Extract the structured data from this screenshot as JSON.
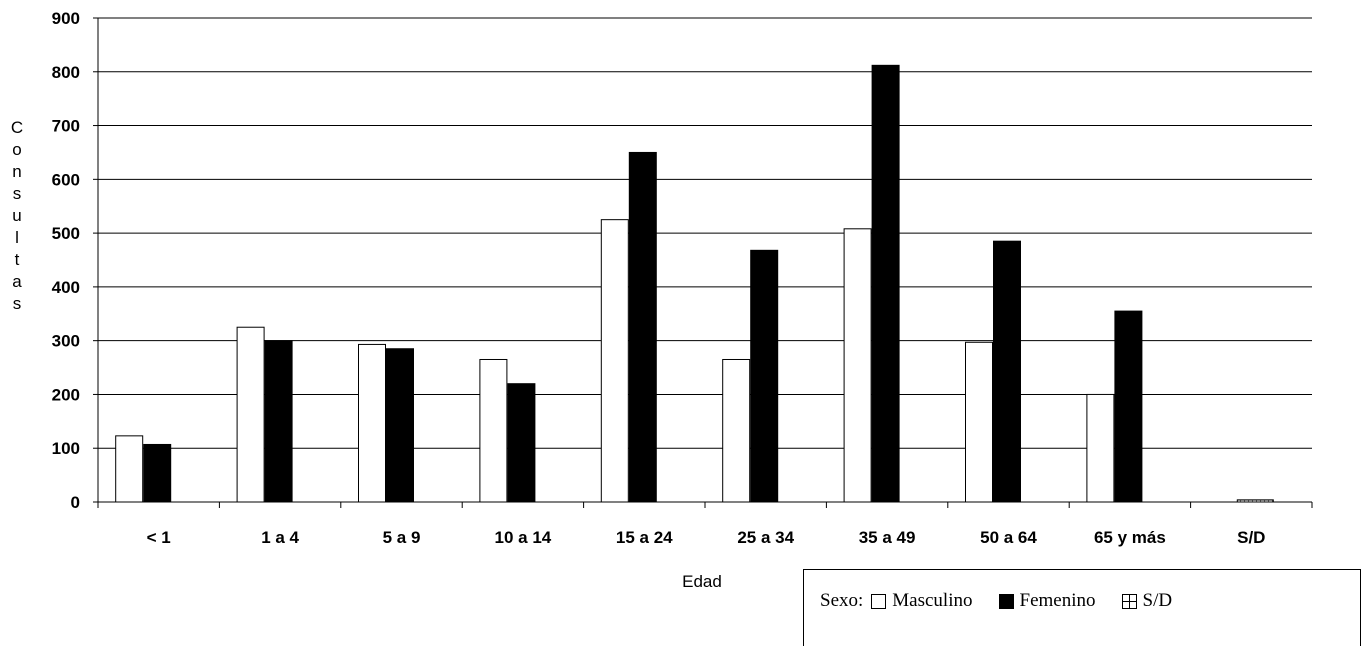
{
  "chart_data": {
    "type": "bar",
    "categories": [
      "< 1",
      "1 a 4",
      "5 a 9",
      "10 a 14",
      "15 a 24",
      "25 a 34",
      "35 a 49",
      "50 a 64",
      "65 y más",
      "S/D"
    ],
    "series": [
      {
        "name": "Masculino",
        "color": "#ffffff",
        "values": [
          123,
          325,
          293,
          265,
          525,
          265,
          508,
          297,
          200,
          0
        ]
      },
      {
        "name": "Femenino",
        "color": "#000000",
        "values": [
          107,
          300,
          285,
          220,
          650,
          468,
          812,
          485,
          355,
          0
        ]
      },
      {
        "name": "S/D",
        "color": "grid",
        "values": [
          0,
          0,
          0,
          0,
          0,
          0,
          0,
          0,
          0,
          4
        ]
      }
    ],
    "ylim": [
      0,
      900
    ],
    "yticks": [
      0,
      100,
      200,
      300,
      400,
      500,
      600,
      700,
      800,
      900
    ],
    "ylabel": "Consultas",
    "xlabel": "Edad",
    "grid": true,
    "legend_position": "bottom-right"
  },
  "legend": {
    "prefix": "Sexo:",
    "items": [
      "Masculino",
      "Femenino",
      "S/D"
    ]
  }
}
